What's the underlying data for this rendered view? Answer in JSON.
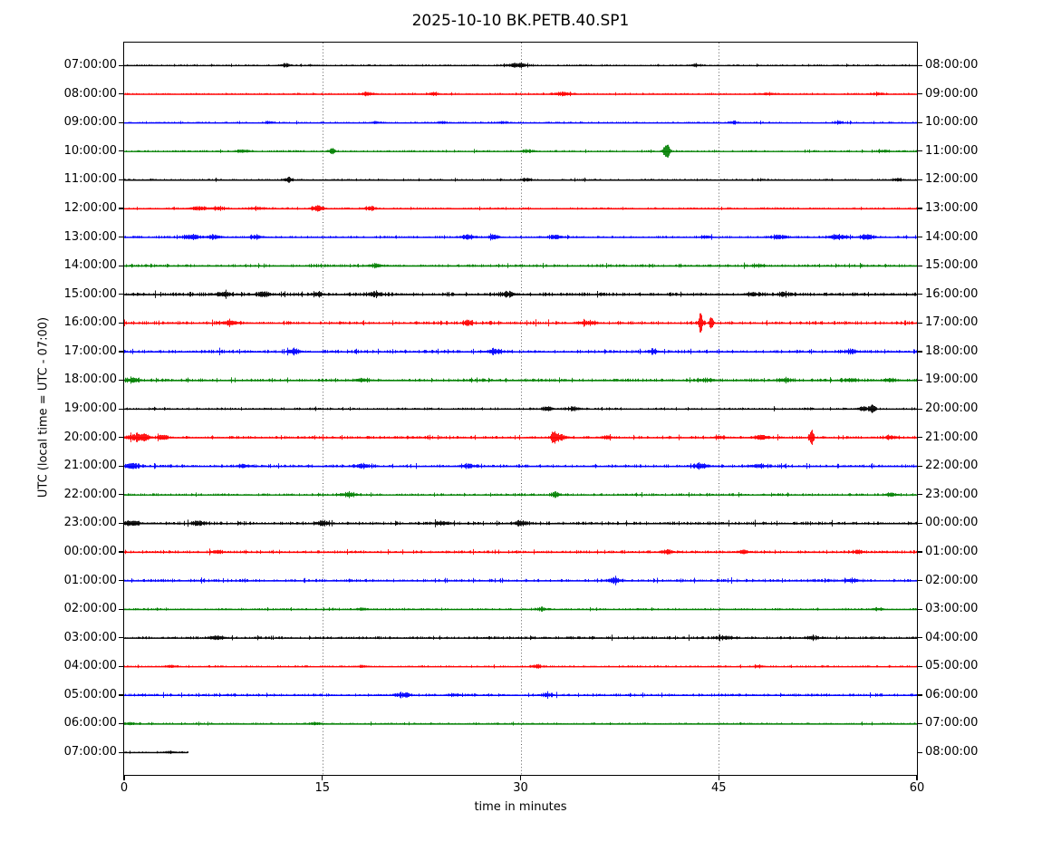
{
  "figure": {
    "title": "2025-10-10 BK.PETB.40.SP1"
  },
  "chart_data": {
    "type": "line",
    "subtype": "helicorder-dayplot",
    "title": "2025-10-10 BK.PETB.40.SP1",
    "station_id": "BK.PETB.40.SP1",
    "date": "2025-10-10",
    "xlabel": "time in minutes",
    "ylabel": "UTC (local time = UTC - 07:00)",
    "xlim": [
      0,
      60
    ],
    "x_ticks": [
      0,
      15,
      30,
      45,
      60
    ],
    "x_tick_labels": [
      "0",
      "15",
      "30",
      "45",
      "60"
    ],
    "grid": {
      "vertical_dotted_at_minutes": [
        15,
        30,
        45
      ]
    },
    "trace_colors": {
      "black": "#000000",
      "red": "#ff0000",
      "blue": "#0000ff",
      "green": "#008000"
    },
    "color_cycle": [
      "black",
      "red",
      "blue",
      "green"
    ],
    "rows": [
      {
        "left": "07:00:00",
        "right": "08:00:00",
        "color": "black",
        "base": 0.7,
        "duration": 60,
        "events": [
          [
            12.2,
            1.6,
            0.3
          ],
          [
            29.7,
            2.2,
            0.5
          ],
          [
            43.2,
            1.2,
            0.3
          ]
        ]
      },
      {
        "left": "08:00:00",
        "right": "09:00:00",
        "color": "red",
        "base": 0.7,
        "duration": 60,
        "events": [
          [
            18.4,
            2.0,
            0.3
          ],
          [
            23.4,
            1.8,
            0.25
          ],
          [
            33.2,
            1.8,
            0.5
          ],
          [
            48.7,
            1.2,
            0.3
          ],
          [
            57.0,
            1.2,
            0.3
          ]
        ]
      },
      {
        "left": "09:00:00",
        "right": "10:00:00",
        "color": "blue",
        "base": 0.7,
        "duration": 60,
        "events": [
          [
            11.0,
            1.2,
            0.25
          ],
          [
            19.0,
            1.3,
            0.25
          ],
          [
            24.0,
            1.3,
            0.25
          ],
          [
            28.6,
            1.3,
            0.25
          ],
          [
            46.0,
            1.2,
            0.25
          ],
          [
            54.0,
            1.2,
            0.25
          ]
        ]
      },
      {
        "left": "10:00:00",
        "right": "11:00:00",
        "color": "green",
        "base": 0.8,
        "duration": 60,
        "events": [
          [
            9.0,
            1.4,
            0.4
          ],
          [
            15.7,
            2.2,
            0.2
          ],
          [
            30.5,
            1.2,
            0.4
          ],
          [
            41.0,
            7.5,
            0.18
          ],
          [
            57.5,
            1.2,
            0.3
          ]
        ]
      },
      {
        "left": "11:00:00",
        "right": "12:00:00",
        "color": "black",
        "base": 0.8,
        "duration": 60,
        "events": [
          [
            12.4,
            2.2,
            0.25
          ],
          [
            30.4,
            1.6,
            0.3
          ],
          [
            58.5,
            1.6,
            0.3
          ]
        ]
      },
      {
        "left": "12:00:00",
        "right": "13:00:00",
        "color": "red",
        "base": 0.9,
        "duration": 60,
        "events": [
          [
            5.6,
            1.8,
            0.5
          ],
          [
            7.2,
            1.6,
            0.4
          ],
          [
            10.0,
            1.4,
            0.4
          ],
          [
            14.6,
            2.8,
            0.3
          ],
          [
            18.6,
            1.8,
            0.3
          ]
        ]
      },
      {
        "left": "13:00:00",
        "right": "14:00:00",
        "color": "blue",
        "base": 1.0,
        "duration": 60,
        "events": [
          [
            5.0,
            2.2,
            0.5
          ],
          [
            6.8,
            2.0,
            0.4
          ],
          [
            10.0,
            1.6,
            0.4
          ],
          [
            26.0,
            2.2,
            0.4
          ],
          [
            28.0,
            2.0,
            0.3
          ],
          [
            32.6,
            1.8,
            0.4
          ],
          [
            44.0,
            1.4,
            0.3
          ],
          [
            49.5,
            1.8,
            0.4
          ],
          [
            54.0,
            2.2,
            0.5
          ],
          [
            56.2,
            2.4,
            0.4
          ]
        ]
      },
      {
        "left": "14:00:00",
        "right": "15:00:00",
        "color": "green",
        "base": 1.2,
        "duration": 60,
        "events": [
          [
            19.0,
            1.6,
            0.4
          ],
          [
            48.0,
            1.2,
            0.4
          ]
        ]
      },
      {
        "left": "15:00:00",
        "right": "16:00:00",
        "color": "black",
        "base": 1.5,
        "duration": 60,
        "events": [
          [
            7.5,
            2.0,
            0.4
          ],
          [
            10.5,
            2.0,
            0.4
          ],
          [
            14.6,
            2.0,
            0.3
          ],
          [
            19.0,
            2.0,
            0.4
          ],
          [
            29.0,
            2.0,
            0.4
          ],
          [
            47.5,
            1.6,
            0.4
          ],
          [
            50.0,
            1.6,
            0.4
          ]
        ]
      },
      {
        "left": "16:00:00",
        "right": "17:00:00",
        "color": "red",
        "base": 1.5,
        "duration": 60,
        "events": [
          [
            8.0,
            2.0,
            0.4
          ],
          [
            26.0,
            2.6,
            0.25
          ],
          [
            35.0,
            1.5,
            0.5
          ],
          [
            43.6,
            9.0,
            0.12
          ],
          [
            44.4,
            7.0,
            0.12
          ]
        ]
      },
      {
        "left": "17:00:00",
        "right": "18:00:00",
        "color": "blue",
        "base": 1.4,
        "duration": 60,
        "events": [
          [
            12.8,
            2.6,
            0.3
          ],
          [
            28.0,
            2.2,
            0.4
          ],
          [
            40.0,
            1.8,
            0.3
          ],
          [
            55.0,
            1.5,
            0.4
          ]
        ]
      },
      {
        "left": "18:00:00",
        "right": "19:00:00",
        "color": "green",
        "base": 1.3,
        "duration": 60,
        "events": [
          [
            0.6,
            2.2,
            0.4
          ],
          [
            18.0,
            1.6,
            0.4
          ],
          [
            44.0,
            1.6,
            0.4
          ],
          [
            50.0,
            1.6,
            0.4
          ],
          [
            55.0,
            1.6,
            0.4
          ],
          [
            58.0,
            1.6,
            0.3
          ]
        ]
      },
      {
        "left": "19:00:00",
        "right": "20:00:00",
        "color": "black",
        "base": 1.0,
        "duration": 60,
        "events": [
          [
            32.0,
            2.2,
            0.3
          ],
          [
            34.0,
            1.6,
            0.4
          ],
          [
            55.9,
            2.0,
            0.3
          ],
          [
            56.6,
            4.5,
            0.15
          ]
        ]
      },
      {
        "left": "20:00:00",
        "right": "21:00:00",
        "color": "red",
        "base": 1.2,
        "duration": 60,
        "events": [
          [
            0.8,
            3.0,
            0.4
          ],
          [
            1.6,
            2.6,
            0.3
          ],
          [
            2.9,
            2.0,
            0.3
          ],
          [
            32.5,
            5.5,
            0.15
          ],
          [
            33.0,
            2.0,
            0.4
          ],
          [
            36.5,
            1.6,
            0.3
          ],
          [
            45.0,
            1.6,
            0.3
          ],
          [
            48.2,
            2.0,
            0.4
          ],
          [
            52.0,
            7.5,
            0.12
          ],
          [
            58.0,
            1.6,
            0.3
          ]
        ]
      },
      {
        "left": "21:00:00",
        "right": "22:00:00",
        "color": "blue",
        "base": 1.3,
        "duration": 60,
        "events": [
          [
            0.6,
            2.4,
            0.4
          ],
          [
            9.0,
            1.6,
            0.3
          ],
          [
            18.0,
            2.0,
            0.4
          ],
          [
            26.0,
            1.8,
            0.4
          ],
          [
            43.6,
            2.2,
            0.4
          ],
          [
            48.0,
            1.8,
            0.4
          ]
        ]
      },
      {
        "left": "22:00:00",
        "right": "23:00:00",
        "color": "green",
        "base": 1.1,
        "duration": 60,
        "events": [
          [
            17.0,
            2.0,
            0.4
          ],
          [
            32.6,
            3.0,
            0.2
          ],
          [
            58.0,
            1.6,
            0.3
          ]
        ]
      },
      {
        "left": "23:00:00",
        "right": "00:00:00",
        "color": "black",
        "base": 1.4,
        "duration": 60,
        "events": [
          [
            0.6,
            2.4,
            0.4
          ],
          [
            5.6,
            2.0,
            0.4
          ],
          [
            15.0,
            2.0,
            0.4
          ],
          [
            24.0,
            1.8,
            0.4
          ],
          [
            30.0,
            2.0,
            0.4
          ]
        ]
      },
      {
        "left": "00:00:00",
        "right": "01:00:00",
        "color": "red",
        "base": 1.2,
        "duration": 60,
        "events": [
          [
            7.0,
            1.6,
            0.3
          ],
          [
            41.0,
            2.0,
            0.3
          ],
          [
            46.8,
            1.8,
            0.3
          ],
          [
            55.5,
            1.4,
            0.3
          ]
        ]
      },
      {
        "left": "01:00:00",
        "right": "02:00:00",
        "color": "blue",
        "base": 1.3,
        "duration": 60,
        "events": [
          [
            37.0,
            1.8,
            0.4
          ],
          [
            55.0,
            1.6,
            0.4
          ]
        ]
      },
      {
        "left": "02:00:00",
        "right": "03:00:00",
        "color": "green",
        "base": 0.8,
        "duration": 60,
        "events": [
          [
            18.0,
            1.4,
            0.3
          ],
          [
            31.5,
            1.4,
            0.3
          ],
          [
            57.0,
            1.3,
            0.3
          ]
        ]
      },
      {
        "left": "03:00:00",
        "right": "04:00:00",
        "color": "black",
        "base": 1.2,
        "duration": 60,
        "events": [
          [
            7.0,
            1.6,
            0.4
          ],
          [
            45.5,
            1.5,
            0.4
          ],
          [
            52.0,
            1.4,
            0.3
          ]
        ]
      },
      {
        "left": "04:00:00",
        "right": "05:00:00",
        "color": "red",
        "base": 0.8,
        "duration": 60,
        "events": [
          [
            3.5,
            1.4,
            0.3
          ],
          [
            18.0,
            1.4,
            0.25
          ],
          [
            31.2,
            1.8,
            0.3
          ],
          [
            48.0,
            1.4,
            0.3
          ]
        ]
      },
      {
        "left": "05:00:00",
        "right": "06:00:00",
        "color": "blue",
        "base": 1.2,
        "duration": 60,
        "events": [
          [
            21.0,
            1.6,
            0.4
          ],
          [
            25.0,
            1.4,
            0.3
          ],
          [
            32.0,
            1.8,
            0.3
          ]
        ]
      },
      {
        "left": "06:00:00",
        "right": "07:00:00",
        "color": "green",
        "base": 0.8,
        "duration": 60,
        "events": [
          [
            0.4,
            1.6,
            0.3
          ],
          [
            14.6,
            1.3,
            0.3
          ]
        ]
      },
      {
        "left": "07:00:00",
        "right": "08:00:00",
        "color": "black",
        "base": 0.8,
        "duration": 4.8,
        "events": [
          [
            3.4,
            1.2,
            0.3
          ]
        ]
      }
    ]
  }
}
